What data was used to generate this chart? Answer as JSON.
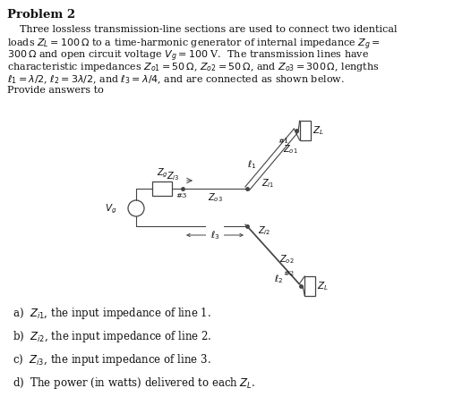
{
  "title": "Problem 2",
  "para_lines": [
    "    Three lossless transmission-line sections are used to connect two identical",
    "loads $Z_L = 100\\,\\Omega$ to a time-harmonic generator of internal impedance $Z_g =$",
    "$300\\,\\Omega$ and open circuit voltage $V_g = 100$ V.  The transmission lines have",
    "characteristic impedances $Z_{o1} = 50\\,\\Omega$, $Z_{o2} = 50\\,\\Omega$, and $Z_{o3} = 300\\,\\Omega$, lengths",
    "$\\ell_1 = \\lambda/2$, $\\ell_2 = 3\\lambda/2$, and $\\ell_3 = \\lambda/4$, and are connected as shown below.",
    "Provide answers to"
  ],
  "items": [
    "a)  $Z_{i1}$, the input impedance of line 1.",
    "b)  $Z_{i2}$, the input impedance of line 2.",
    "c)  $Z_{i3}$, the input impedance of line 3.",
    "d)  The power (in watts) delivered to each $Z_L$."
  ],
  "bg_color": "#ffffff",
  "text_color": "#111111",
  "line_color": "#444444"
}
